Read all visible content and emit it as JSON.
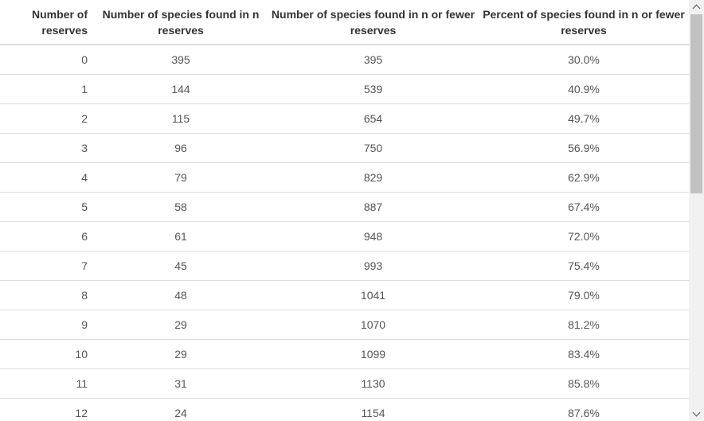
{
  "table": {
    "headers": [
      "Number of reserves",
      "Number of species found in n reserves",
      "Number of species found in n or fewer reserves",
      "Percent of species found in n or fewer reserves"
    ],
    "rows": [
      [
        "0",
        "395",
        "395",
        "30.0%"
      ],
      [
        "1",
        "144",
        "539",
        "40.9%"
      ],
      [
        "2",
        "115",
        "654",
        "49.7%"
      ],
      [
        "3",
        "96",
        "750",
        "56.9%"
      ],
      [
        "4",
        "79",
        "829",
        "62.9%"
      ],
      [
        "5",
        "58",
        "887",
        "67.4%"
      ],
      [
        "6",
        "61",
        "948",
        "72.0%"
      ],
      [
        "7",
        "45",
        "993",
        "75.4%"
      ],
      [
        "8",
        "48",
        "1041",
        "79.0%"
      ],
      [
        "9",
        "29",
        "1070",
        "81.2%"
      ],
      [
        "10",
        "29",
        "1099",
        "83.4%"
      ],
      [
        "11",
        "31",
        "1130",
        "85.8%"
      ],
      [
        "12",
        "24",
        "1154",
        "87.6%"
      ]
    ]
  },
  "scrollbar": {
    "up_icon": "chevron-up-icon",
    "down_icon": "chevron-down-icon"
  }
}
